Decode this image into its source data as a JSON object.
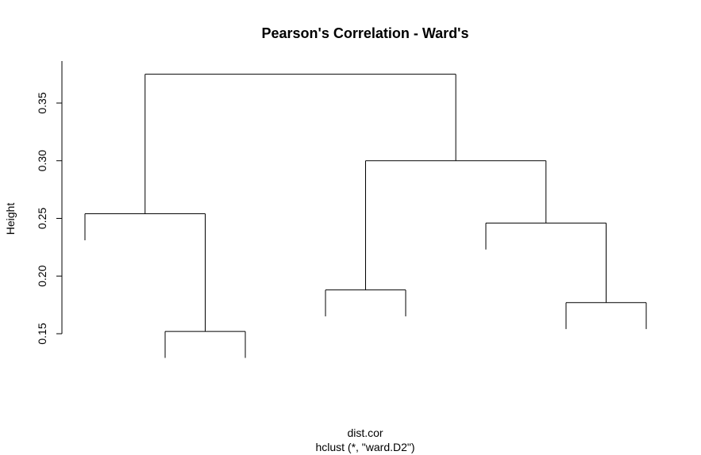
{
  "chart_data": {
    "type": "dendrogram",
    "title": "Pearson's Correlation - Ward's",
    "xlabel": "dist.cor",
    "sublabel": "hclust (*, \"ward.D2\")",
    "ylabel": "Height",
    "yticks": [
      0.15,
      0.2,
      0.25,
      0.3,
      0.35
    ],
    "ytick_labels": [
      "0.15",
      "0.20",
      "0.25",
      "0.30",
      "0.35"
    ],
    "ylim": [
      0.15,
      0.375
    ],
    "n_leaves": 8,
    "leaf_labels": [],
    "merges": [
      {
        "left": 4,
        "right": 5,
        "height": 0.152
      },
      {
        "left": 3,
        "right": 4,
        "height": 0.188
      },
      {
        "left": 7,
        "right": 8,
        "height": 0.177
      },
      {
        "left": 6,
        "right": 7,
        "height": 0.246
      },
      {
        "left": 1,
        "right": 2,
        "height": 0.254
      },
      {
        "left": 3,
        "right": 6,
        "height": 0.3
      },
      {
        "left": 1,
        "right": 3,
        "height": 0.375
      }
    ],
    "leaves": [
      {
        "id": 1,
        "top": 0.254,
        "bottom": 0.231
      },
      {
        "id": 2,
        "top": 0.152,
        "bottom": 0.129
      },
      {
        "id": 3,
        "top": 0.152,
        "bottom": 0.129
      },
      {
        "id": 4,
        "top": 0.188,
        "bottom": 0.165
      },
      {
        "id": 5,
        "top": 0.188,
        "bottom": 0.165
      },
      {
        "id": 6,
        "top": 0.246,
        "bottom": 0.223
      },
      {
        "id": 7,
        "top": 0.177,
        "bottom": 0.154
      },
      {
        "id": 8,
        "top": 0.177,
        "bottom": 0.154
      }
    ],
    "nodes": [
      {
        "id": "A",
        "left": "L2",
        "right": "L3",
        "height": 0.152
      },
      {
        "id": "B",
        "left": "L1",
        "right": "A",
        "height": 0.254
      },
      {
        "id": "C",
        "left": "L4",
        "right": "L5",
        "height": 0.188
      },
      {
        "id": "D",
        "left": "L7",
        "right": "L8",
        "height": 0.177
      },
      {
        "id": "E",
        "left": "L6",
        "right": "D",
        "height": 0.246
      },
      {
        "id": "F",
        "left": "C",
        "right": "E",
        "height": 0.3
      },
      {
        "id": "G",
        "left": "B",
        "right": "F",
        "height": 0.375
      }
    ],
    "grid": false
  }
}
